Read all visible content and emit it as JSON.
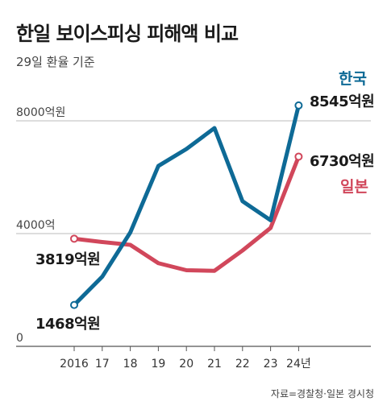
{
  "title": "한일 보이스피싱 피해액 비교",
  "subtitle": "29일 환율 기준",
  "source": "자료=경찰청·일본 경시청",
  "colors": {
    "korea": "#0e6a96",
    "japan": "#d1475b",
    "grid": "#bbbbbb",
    "axis": "#555555"
  },
  "chart_data": {
    "type": "line",
    "x": [
      "2016",
      "17",
      "18",
      "19",
      "20",
      "21",
      "22",
      "23",
      "24년"
    ],
    "ylim": [
      0,
      10000
    ],
    "y_ticks": [
      {
        "value": 0,
        "label": "0"
      },
      {
        "value": 4000,
        "label": "4000억"
      },
      {
        "value": 8000,
        "label": "8000억원"
      }
    ],
    "grid": true,
    "legend": "right, inline labels",
    "series": [
      {
        "name": "한국",
        "key": "korea",
        "values": [
          1468,
          2470,
          4040,
          6398,
          7000,
          7744,
          5147,
          4472,
          8545
        ],
        "start_label": "1468억원",
        "end_label": "8545억원"
      },
      {
        "name": "일본",
        "key": "japan",
        "values": [
          3819,
          3700,
          3600,
          2950,
          2700,
          2680,
          3400,
          4200,
          6730
        ],
        "start_label": "3819억원",
        "end_label": "6730억원"
      }
    ]
  }
}
